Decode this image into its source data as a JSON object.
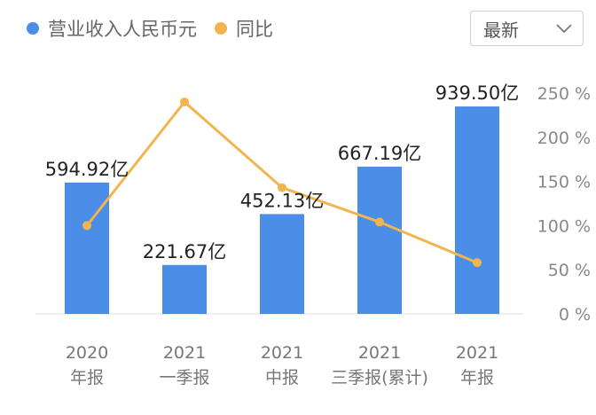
{
  "legend": {
    "items": [
      {
        "label": "营业收入人民币元",
        "color": "#4a8ee8"
      },
      {
        "label": "同比",
        "color": "#f2b44c"
      }
    ]
  },
  "dropdown": {
    "selected": "最新",
    "icon": "chevron-down-icon"
  },
  "chart_data": {
    "type": "bar",
    "categories": [
      {
        "line1": "2020",
        "line2": "年报"
      },
      {
        "line1": "2021",
        "line2": "一季报"
      },
      {
        "line1": "2021",
        "line2": "中报"
      },
      {
        "line1": "2021",
        "line2": "三季报(累计)"
      },
      {
        "line1": "2021",
        "line2": "年报"
      }
    ],
    "series": [
      {
        "name": "营业收入人民币元",
        "type": "bar",
        "values": [
          594.92,
          221.67,
          452.13,
          667.19,
          939.5
        ],
        "labels": [
          "594.92亿",
          "221.67亿",
          "452.13亿",
          "667.19亿",
          "939.50亿"
        ],
        "color": "#4a8ee8"
      },
      {
        "name": "同比",
        "type": "line",
        "values": [
          100,
          240,
          143,
          104,
          58
        ],
        "color": "#f2b44c",
        "axis": "right"
      }
    ],
    "right_axis": {
      "ticks": [
        "0 %",
        "50 %",
        "100 %",
        "150 %",
        "200 %",
        "250 %"
      ],
      "ylim": [
        0,
        250
      ]
    },
    "bar_axis": {
      "ylim": [
        0,
        1000
      ]
    },
    "grid": false,
    "legend_position": "top-left"
  }
}
